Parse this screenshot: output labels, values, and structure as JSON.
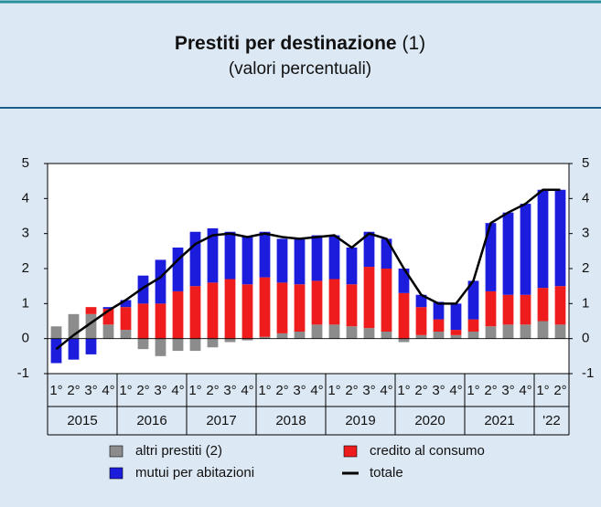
{
  "chart_data": {
    "type": "bar",
    "title": "Prestiti per destinazione",
    "title_note": "(1)",
    "subtitle": "(valori percentuali)",
    "categories": [
      "1°",
      "2°",
      "3°",
      "4°",
      "1°",
      "2°",
      "3°",
      "4°",
      "1°",
      "2°",
      "3°",
      "4°",
      "1°",
      "2°",
      "3°",
      "4°",
      "1°",
      "2°",
      "3°",
      "4°",
      "1°",
      "2°",
      "3°",
      "4°",
      "1°",
      "2°",
      "3°",
      "4°",
      "1°",
      "2°"
    ],
    "x_groups": [
      "2015",
      "2016",
      "2017",
      "2018",
      "2019",
      "2020",
      "2021",
      "'22"
    ],
    "series": [
      {
        "name": "altri prestiti (2)",
        "color": "#8c8c8c",
        "type": "bar",
        "values": [
          0.35,
          0.7,
          0.7,
          0.4,
          0.25,
          -0.3,
          -0.5,
          -0.35,
          -0.35,
          -0.25,
          -0.1,
          -0.05,
          0.05,
          0.15,
          0.2,
          0.4,
          0.4,
          0.35,
          0.3,
          0.2,
          -0.1,
          0.1,
          0.2,
          0.1,
          0.2,
          0.35,
          0.4,
          0.4,
          0.5,
          0.4
        ]
      },
      {
        "name": "credito al consumo",
        "color": "#ee1c1c",
        "type": "bar",
        "values": [
          0,
          0,
          0.2,
          0.45,
          0.65,
          1.0,
          1.0,
          1.35,
          1.5,
          1.6,
          1.7,
          1.55,
          1.7,
          1.45,
          1.35,
          1.25,
          1.3,
          1.2,
          1.75,
          1.8,
          1.3,
          0.8,
          0.35,
          0.15,
          0.35,
          1.0,
          0.85,
          0.85,
          0.95,
          1.1
        ]
      },
      {
        "name": "mutui per abitazioni",
        "color": "#1c1cdc",
        "type": "bar",
        "values": [
          -0.7,
          -0.6,
          -0.45,
          0.05,
          0.2,
          0.8,
          1.25,
          1.25,
          1.55,
          1.55,
          1.35,
          1.35,
          1.3,
          1.25,
          1.3,
          1.3,
          1.25,
          1.05,
          1.0,
          0.85,
          0.7,
          0.35,
          0.5,
          0.75,
          1.1,
          1.95,
          2.35,
          2.6,
          2.8,
          2.75
        ]
      },
      {
        "name": "totale",
        "color": "#000000",
        "type": "line",
        "values": [
          -0.3,
          0.1,
          0.45,
          0.8,
          1.1,
          1.45,
          1.75,
          2.25,
          2.7,
          2.95,
          3.0,
          2.9,
          3.0,
          2.9,
          2.85,
          2.9,
          2.95,
          2.6,
          3.0,
          2.85,
          2.0,
          1.25,
          1.0,
          1.0,
          1.65,
          3.3,
          3.6,
          3.85,
          4.25,
          4.25
        ]
      }
    ],
    "ylim": [
      -1,
      5
    ],
    "yticks": [
      -1,
      0,
      1,
      2,
      3,
      4,
      5
    ]
  }
}
